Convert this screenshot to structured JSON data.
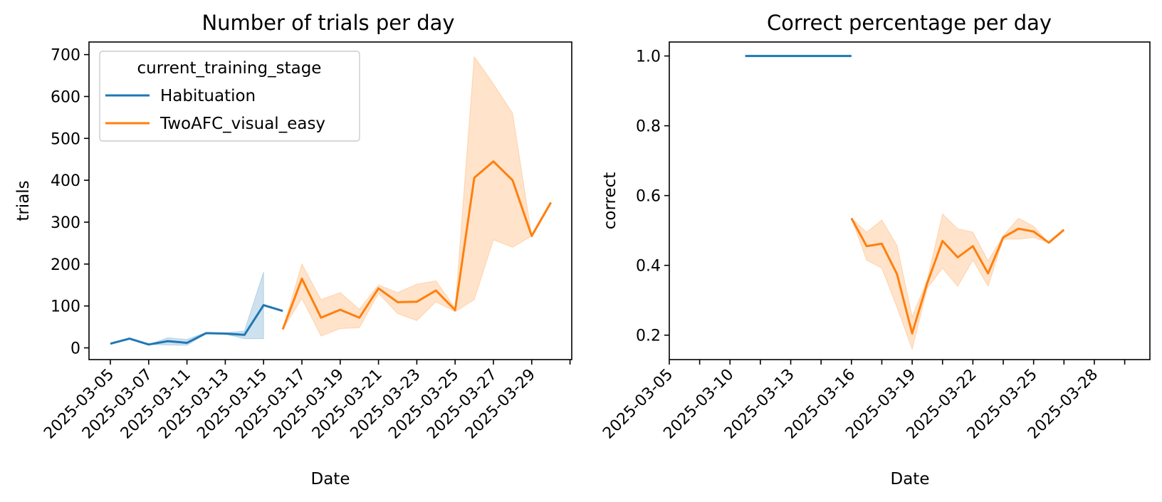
{
  "chart_data": [
    {
      "type": "line",
      "title": "Number of trials per day",
      "xlabel": "Date",
      "ylabel": "trials",
      "x_tick_labels": [
        "2025-03-05",
        "2025-03-07",
        "2025-03-11",
        "2025-03-13",
        "2025-03-15",
        "2025-03-17",
        "2025-03-19",
        "2025-03-21",
        "2025-03-23",
        "2025-03-25",
        "2025-03-27",
        "2025-03-29",
        ""
      ],
      "y_ticks": [
        0,
        100,
        200,
        300,
        400,
        500,
        600,
        700
      ],
      "ylim": [
        -28,
        730
      ],
      "legend": {
        "title": "current_training_stage",
        "placement": "upper-left"
      },
      "series": [
        {
          "name": "Habituation",
          "color": "#1f77b4",
          "x": [
            0,
            1,
            2,
            3,
            4,
            5,
            6,
            7,
            8,
            9
          ],
          "y": [
            10,
            22,
            8,
            16,
            12,
            35,
            34,
            31,
            102,
            88
          ],
          "lower": [
            10,
            22,
            8,
            7,
            6,
            34,
            33,
            22,
            22,
            null
          ],
          "upper": [
            10,
            22,
            8,
            24,
            20,
            37,
            36,
            40,
            181,
            null
          ]
        },
        {
          "name": "TwoAFC_visual_easy",
          "color": "#ff7f0e",
          "x": [
            9,
            10,
            11,
            12,
            13,
            14,
            15,
            16,
            17,
            18,
            19,
            20,
            21,
            22,
            23
          ],
          "y": [
            44,
            165,
            72,
            91,
            72,
            142,
            109,
            110,
            137,
            90,
            406,
            445,
            400,
            267,
            347
          ],
          "lower": [
            44,
            118,
            28,
            46,
            48,
            130,
            82,
            65,
            110,
            86,
            115,
            258,
            240,
            267,
            347
          ],
          "upper": [
            44,
            200,
            115,
            132,
            92,
            150,
            132,
            152,
            160,
            95,
            695,
            630,
            560,
            267,
            347
          ]
        }
      ]
    },
    {
      "type": "line",
      "title": "Correct percentage per day",
      "xlabel": "Date",
      "ylabel": "correct",
      "x_tick_labels": [
        "2025-03-05",
        "",
        "2025-03-10",
        "",
        "2025-03-13",
        "",
        "2025-03-16",
        "",
        "2025-03-19",
        "",
        "2025-03-22",
        "",
        "2025-03-25",
        "",
        "2025-03-28",
        ""
      ],
      "y_ticks": [
        0.2,
        0.4,
        0.6,
        0.8,
        1.0
      ],
      "y_tick_labels": [
        "0.2",
        "0.4",
        "0.6",
        "0.8",
        "1.0"
      ],
      "ylim": [
        0.13,
        1.04
      ],
      "series": [
        {
          "name": "Habituation",
          "color": "#1f77b4",
          "x": [
            5,
            6,
            7,
            8,
            9,
            10,
            11,
            12
          ],
          "y": [
            1.0,
            1.0,
            1.0,
            1.0,
            1.0,
            1.0,
            1.0,
            1.0
          ]
        },
        {
          "name": "TwoAFC_visual_easy",
          "color": "#ff7f0e",
          "x": [
            12,
            13,
            14,
            15,
            16,
            17,
            18,
            19,
            20,
            21,
            22,
            23,
            24,
            25,
            26,
            27,
            28,
            29
          ],
          "y": [
            0.535,
            0.455,
            0.462,
            0.375,
            0.205,
            0.35,
            0.47,
            0.423,
            0.455,
            0.377,
            0.48,
            0.505,
            0.497,
            0.465,
            0.502,
            null,
            null,
            null
          ],
          "lower": [
            0.535,
            0.415,
            0.392,
            0.28,
            0.16,
            0.335,
            0.392,
            0.34,
            0.415,
            0.34,
            0.475,
            0.475,
            0.48,
            0.465,
            0.502,
            null,
            null,
            null
          ],
          "upper": [
            0.535,
            0.495,
            0.53,
            0.457,
            0.253,
            0.36,
            0.547,
            0.505,
            0.495,
            0.413,
            0.485,
            0.535,
            0.512,
            0.465,
            0.502,
            null,
            null,
            null
          ]
        }
      ]
    }
  ]
}
